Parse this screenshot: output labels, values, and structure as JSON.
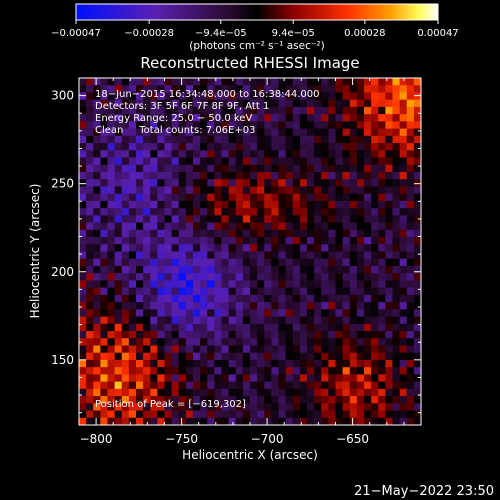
{
  "chart_data": {
    "type": "heatmap",
    "title": "Reconstructed RHESSI Image",
    "xlabel": "Heliocentric X (arcsec)",
    "ylabel": "Heliocentric Y (arcsec)",
    "xlim": [
      -810,
      -610
    ],
    "ylim": [
      113,
      310
    ],
    "xticks": [
      -800,
      -750,
      -700,
      -650
    ],
    "yticks": [
      150,
      200,
      250,
      300
    ],
    "xtick_labels": [
      "−800",
      "−750",
      "−700",
      "−650"
    ],
    "ytick_labels": [
      "150",
      "200",
      "250",
      "300"
    ],
    "colorbar": {
      "range": [
        -0.00047,
        0.00047
      ],
      "ticks": [
        -0.00047,
        -0.00028,
        -9.4e-05,
        9.4e-05,
        0.00028,
        0.00047
      ],
      "tick_labels": [
        "−0.00047",
        "−0.00028",
        "−9.4e−05",
        "9.4e−05",
        "0.00028",
        "0.00047"
      ],
      "unit_label": "(photons cm⁻² s⁻¹ asec⁻²)"
    },
    "annotations": [
      "18−Jun−2015 16:34:48.000 to 16:38:44.000",
      "Detectors: 3F 5F 6F 7F 8F 9F, Att 1",
      "Energy Range: 25.0 − 50.0 keV",
      "Clean     Total counts: 7.06E+03"
    ],
    "peak_label": "Position of Peak = [−619,302]",
    "peak": [
      -619,
      302
    ]
  },
  "footer": {
    "timestamp": "21−May−2022 23:50"
  },
  "colors": {
    "background": "#000000",
    "foreground": "#ffffff",
    "colormap": [
      "#0000ff",
      "#5a1fb0",
      "#3a0a40",
      "#000000",
      "#7a0000",
      "#e01000",
      "#ff8000",
      "#ffff40",
      "#ffffff"
    ]
  }
}
